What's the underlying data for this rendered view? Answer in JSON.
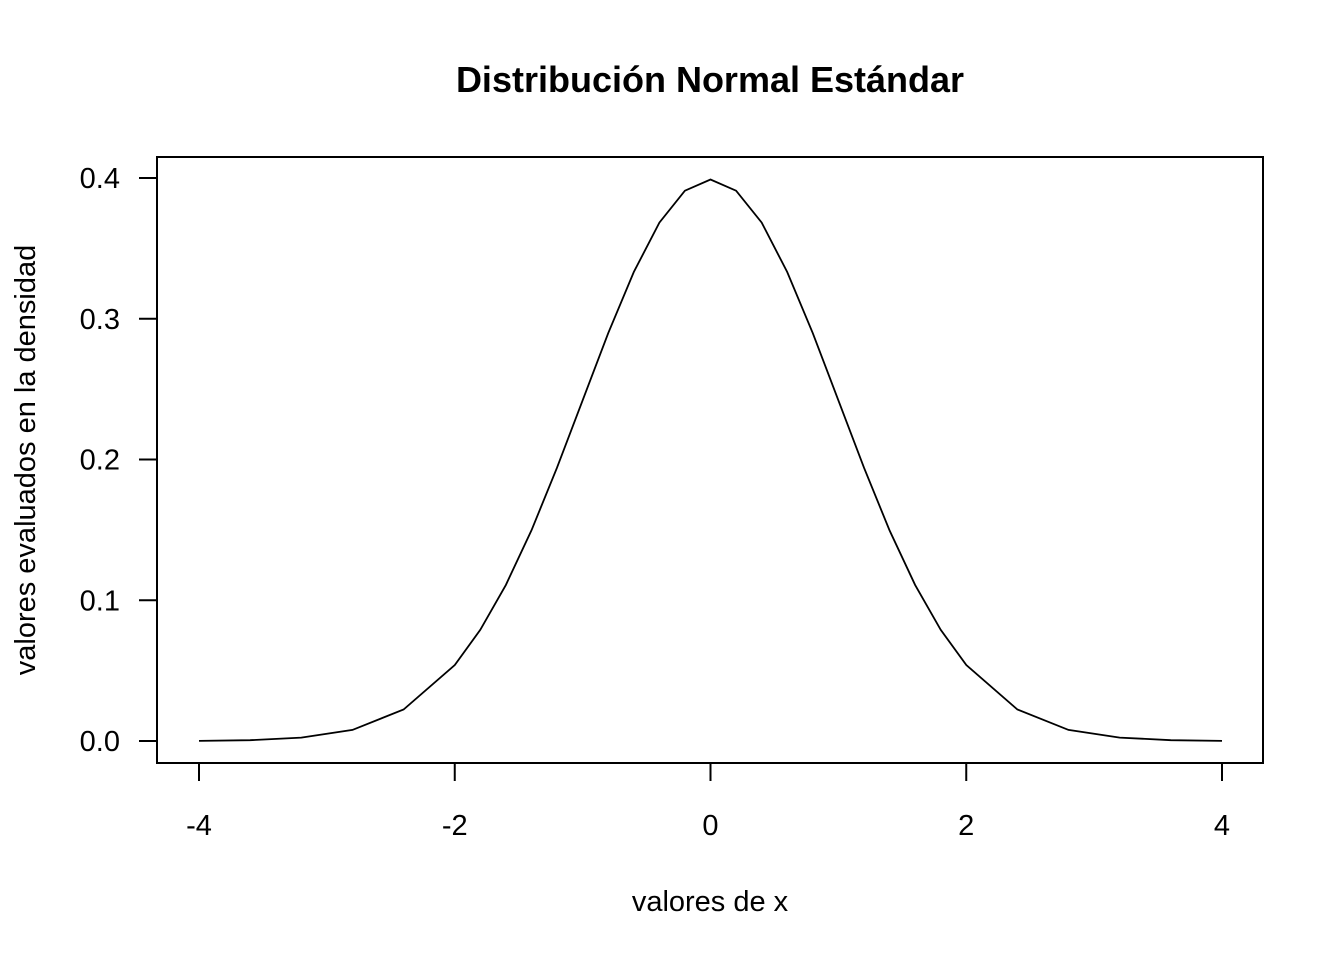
{
  "chart_data": {
    "type": "line",
    "title": "Distribución Normal Estándar",
    "xlabel": "valores de x",
    "ylabel": "valores evaluados en la densidad",
    "xlim": [
      -4,
      4
    ],
    "ylim": [
      0,
      0.4
    ],
    "x_ticks": [
      "-4",
      "-2",
      "0",
      "2",
      "4"
    ],
    "y_ticks": [
      "0.0",
      "0.1",
      "0.2",
      "0.3",
      "0.4"
    ],
    "grid": false,
    "series": [
      {
        "x": [
          -4.0,
          -3.6,
          -3.2,
          -2.8,
          -2.4,
          -2.0,
          -1.8,
          -1.6,
          -1.4,
          -1.2,
          -1.0,
          -0.8,
          -0.6,
          -0.4,
          -0.2,
          0.0,
          0.2,
          0.4,
          0.6,
          0.8,
          1.0,
          1.2,
          1.4,
          1.6,
          1.8,
          2.0,
          2.4,
          2.8,
          3.2,
          3.6,
          4.0
        ],
        "y": [
          0.0001,
          0.0006,
          0.0024,
          0.0079,
          0.0224,
          0.054,
          0.079,
          0.1109,
          0.1497,
          0.1942,
          0.242,
          0.2897,
          0.3332,
          0.3683,
          0.391,
          0.3989,
          0.391,
          0.3683,
          0.3332,
          0.2897,
          0.242,
          0.1942,
          0.1497,
          0.1109,
          0.079,
          0.054,
          0.0224,
          0.0079,
          0.0024,
          0.0006,
          0.0001
        ]
      }
    ]
  }
}
